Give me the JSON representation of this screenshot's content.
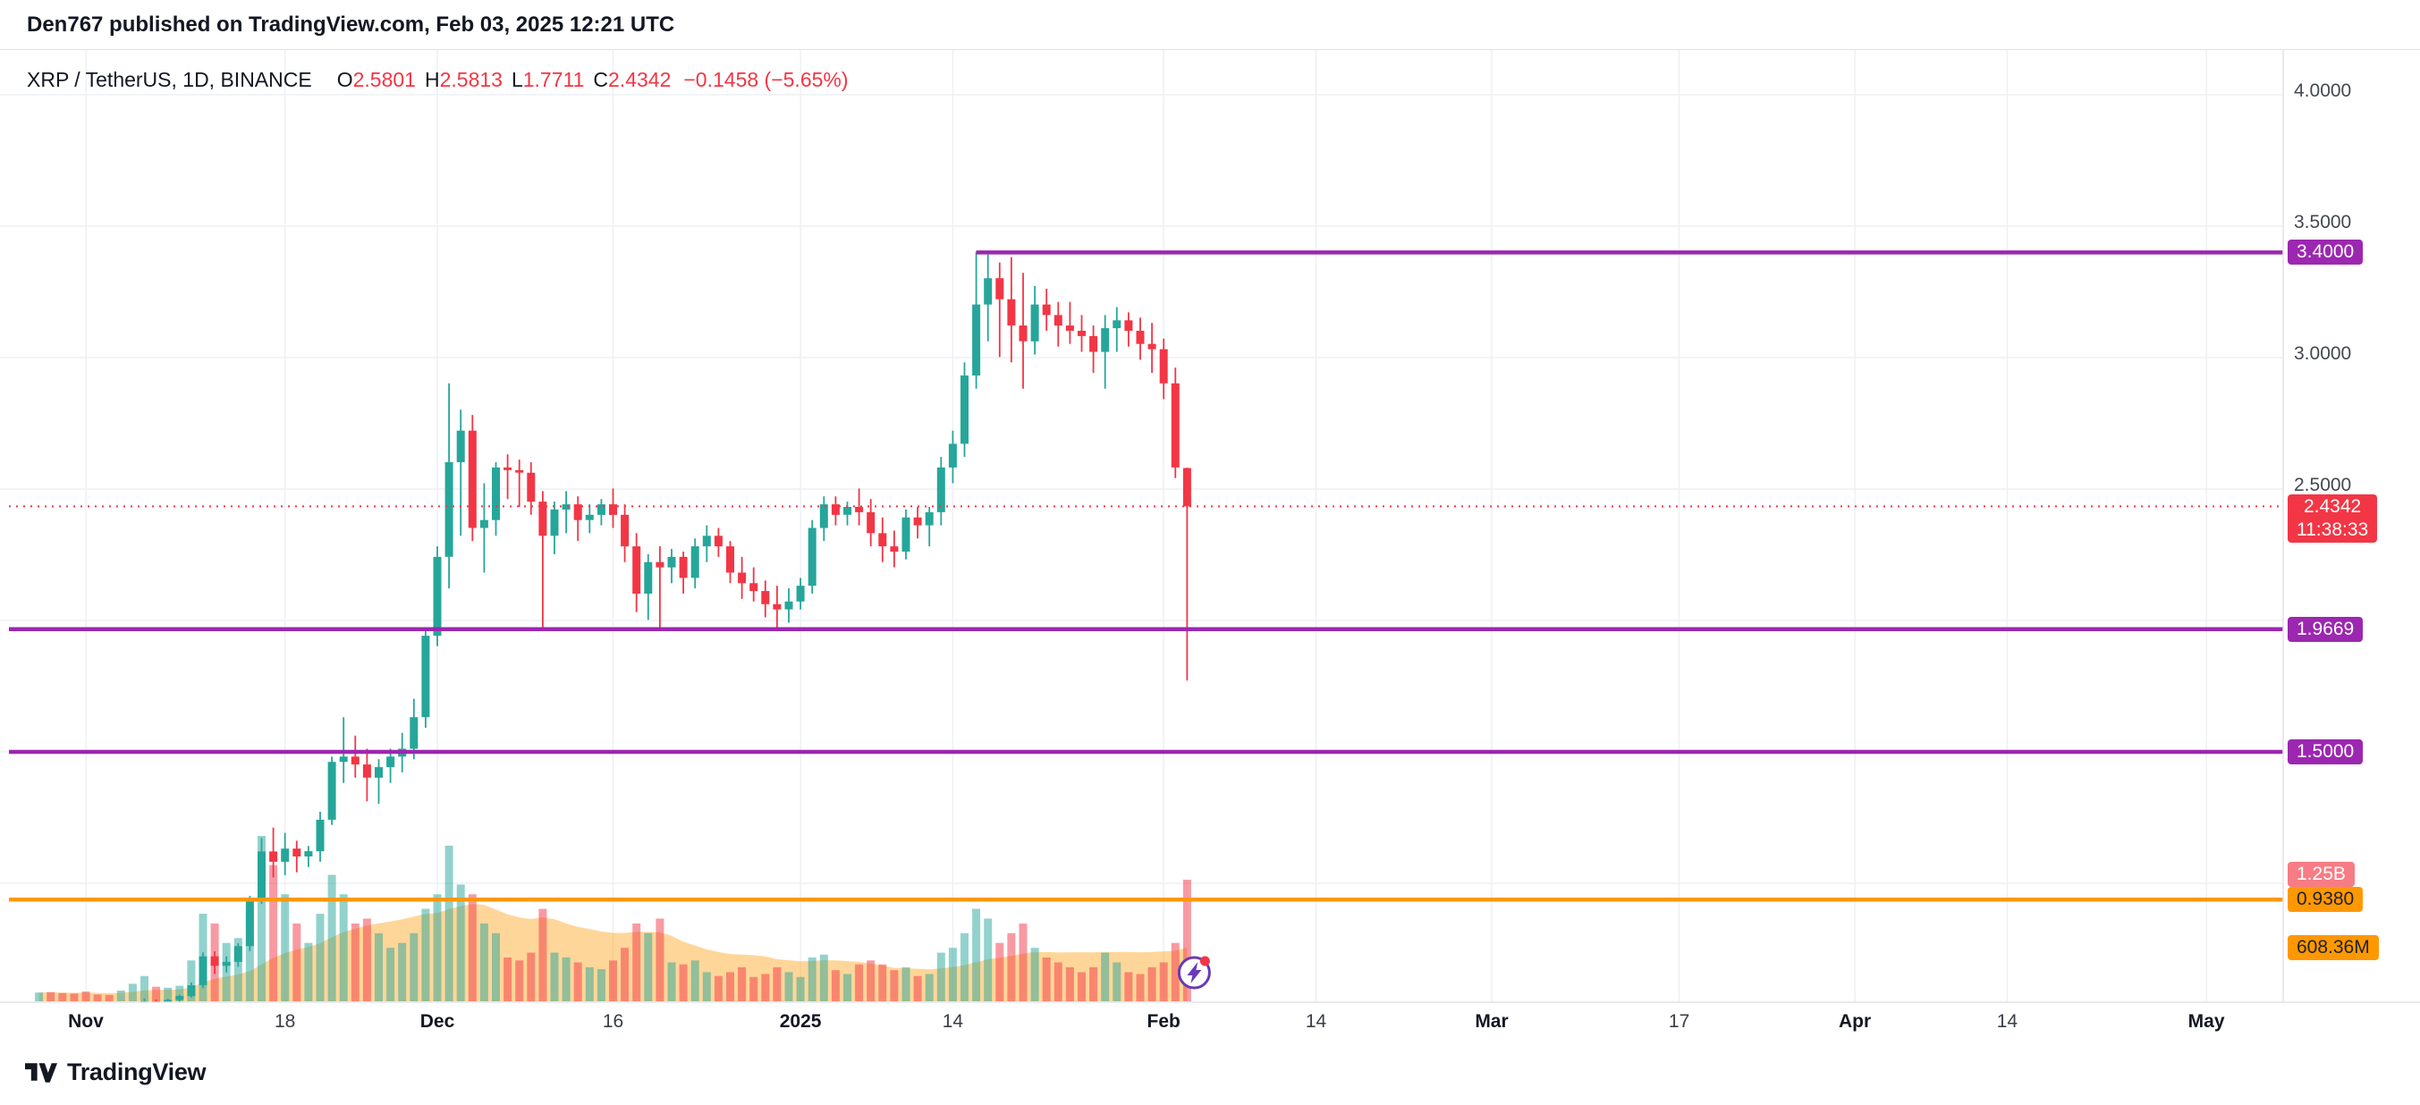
{
  "header": {
    "attribution": "Den767 published on TradingView.com, Feb 03, 2025 12:21 UTC"
  },
  "legend": {
    "symbol": "XRP / TetherUS, 1D, BINANCE",
    "open_label": "O",
    "open": "2.5801",
    "high_label": "H",
    "high": "2.5813",
    "low_label": "L",
    "low": "1.7711",
    "close_label": "C",
    "close": "2.4342",
    "change": "−0.1458 (−5.65%)"
  },
  "price_axis": {
    "plain_ticks": [
      {
        "label": "4.0000",
        "price": 4.0
      },
      {
        "label": "3.5000",
        "price": 3.5
      },
      {
        "label": "3.0000",
        "price": 3.0
      },
      {
        "label": "2.5000",
        "price": 2.5
      }
    ],
    "grid_prices": [
      4.0,
      3.5,
      3.0,
      2.5,
      2.0,
      1.5,
      1.0
    ],
    "current_price": {
      "label": "2.4342",
      "countdown": "11:38:33",
      "price": 2.4342,
      "bg": "#f23645",
      "fg": "#ffffff"
    },
    "levels": [
      {
        "label": "3.4000",
        "price": 3.4,
        "color": "#9c27b0",
        "fg": "#ffffff",
        "from_day": 80
      },
      {
        "label": "1.9669",
        "price": 1.9669,
        "color": "#9c27b0",
        "fg": "#ffffff"
      },
      {
        "label": "1.5000",
        "price": 1.5,
        "color": "#9c27b0",
        "fg": "#ffffff"
      },
      {
        "label": "0.9380",
        "price": 0.938,
        "color": "#ff9800",
        "fg": "#1e222d"
      }
    ],
    "volume_labels": [
      {
        "label": "1.25B",
        "bg": "#f77c85",
        "fg": "#ffffff",
        "anchor": "volume_bar"
      },
      {
        "label": "608.36M",
        "bg": "#ff9800",
        "fg": "#1e222d",
        "anchor": "volume_ma"
      }
    ]
  },
  "time_axis": {
    "ticks": [
      {
        "label": "Nov",
        "day": 4,
        "major": true
      },
      {
        "label": "18",
        "day": 21
      },
      {
        "label": "Dec",
        "day": 34,
        "major": true
      },
      {
        "label": "16",
        "day": 49
      },
      {
        "label": "2025",
        "day": 65,
        "major": true
      },
      {
        "label": "14",
        "day": 78
      },
      {
        "label": "Feb",
        "day": 96,
        "major": true
      },
      {
        "label": "14",
        "day": 109
      },
      {
        "label": "Mar",
        "day": 124,
        "major": true
      },
      {
        "label": "17",
        "day": 140
      },
      {
        "label": "Apr",
        "day": 155,
        "major": true
      },
      {
        "label": "14",
        "day": 168
      },
      {
        "label": "May",
        "day": 185,
        "major": true
      }
    ]
  },
  "marker": {
    "icon": "lightning-bolt-icon",
    "ring_color": "#673ab7",
    "dot_color": "#f23645"
  },
  "footer": {
    "brand": "TradingView",
    "logo_icon": "tradingview-logo"
  },
  "colors": {
    "up": "#26a69a",
    "down": "#f23645",
    "vol_up": "rgba(38,166,154,0.5)",
    "vol_down": "rgba(242,54,69,0.5)",
    "vol_ma_fill": "rgba(255,152,0,0.4)",
    "grid": "#eef0f4",
    "axis_border": "#e0e3eb",
    "current_line": "#f23645"
  },
  "chart_data": {
    "type": "candlestick",
    "title": "XRP / TetherUS, 1D, BINANCE",
    "pair": "XRP/USDT",
    "exchange": "BINANCE",
    "interval": "1D",
    "start_date": "2024-10-28",
    "end_date": "2025-02-03",
    "ylim": [
      0.55,
      4.02
    ],
    "current_ohlc": {
      "open": 2.5801,
      "high": 2.5813,
      "low": 1.7711,
      "close": 2.4342,
      "change": -0.1458,
      "change_pct": -5.65
    },
    "horizontal_levels": [
      3.4,
      1.9669,
      1.5,
      0.938
    ],
    "current_volume": "1.25B",
    "volume_ma": "608.36M",
    "volume_unit": "millions",
    "candles_format": [
      "open",
      "high",
      "low",
      "close",
      "volume_M"
    ],
    "candles": [
      [
        0.52,
        0.53,
        0.512,
        0.525,
        90
      ],
      [
        0.525,
        0.535,
        0.515,
        0.52,
        95
      ],
      [
        0.52,
        0.528,
        0.508,
        0.514,
        85
      ],
      [
        0.514,
        0.52,
        0.505,
        0.512,
        80
      ],
      [
        0.512,
        0.521,
        0.5,
        0.51,
        100
      ],
      [
        0.51,
        0.516,
        0.503,
        0.508,
        70
      ],
      [
        0.508,
        0.512,
        0.5,
        0.505,
        65
      ],
      [
        0.505,
        0.522,
        0.5,
        0.517,
        110
      ],
      [
        0.517,
        0.548,
        0.51,
        0.542,
        180
      ],
      [
        0.542,
        0.562,
        0.53,
        0.551,
        260
      ],
      [
        0.551,
        0.558,
        0.54,
        0.548,
        150
      ],
      [
        0.548,
        0.561,
        0.543,
        0.556,
        140
      ],
      [
        0.556,
        0.576,
        0.55,
        0.571,
        160
      ],
      [
        0.571,
        0.622,
        0.565,
        0.612,
        420
      ],
      [
        0.612,
        0.737,
        0.601,
        0.722,
        900
      ],
      [
        0.722,
        0.741,
        0.655,
        0.686,
        800
      ],
      [
        0.686,
        0.722,
        0.661,
        0.701,
        600
      ],
      [
        0.701,
        0.772,
        0.682,
        0.761,
        650
      ],
      [
        0.761,
        0.952,
        0.742,
        0.932,
        950
      ],
      [
        0.932,
        1.172,
        0.921,
        1.121,
        1700
      ],
      [
        1.121,
        1.212,
        1.022,
        1.082,
        1400
      ],
      [
        1.082,
        1.192,
        1.031,
        1.132,
        1100
      ],
      [
        1.132,
        1.162,
        1.042,
        1.102,
        800
      ],
      [
        1.102,
        1.142,
        1.062,
        1.122,
        600
      ],
      [
        1.122,
        1.272,
        1.082,
        1.242,
        900
      ],
      [
        1.242,
        1.482,
        1.222,
        1.462,
        1300
      ],
      [
        1.462,
        1.632,
        1.382,
        1.482,
        1100
      ],
      [
        1.482,
        1.562,
        1.402,
        1.452,
        800
      ],
      [
        1.452,
        1.512,
        1.312,
        1.402,
        850
      ],
      [
        1.402,
        1.472,
        1.302,
        1.442,
        700
      ],
      [
        1.442,
        1.512,
        1.382,
        1.482,
        550
      ],
      [
        1.482,
        1.572,
        1.422,
        1.512,
        600
      ],
      [
        1.512,
        1.702,
        1.472,
        1.632,
        700
      ],
      [
        1.632,
        1.972,
        1.592,
        1.942,
        950
      ],
      [
        1.942,
        2.282,
        1.902,
        2.242,
        1100
      ],
      [
        2.242,
        2.902,
        2.122,
        2.602,
        1600
      ],
      [
        2.602,
        2.802,
        2.322,
        2.722,
        1200
      ],
      [
        2.722,
        2.782,
        2.302,
        2.352,
        1100
      ],
      [
        2.352,
        2.522,
        2.182,
        2.382,
        800
      ],
      [
        2.382,
        2.602,
        2.322,
        2.582,
        700
      ],
      [
        2.582,
        2.632,
        2.462,
        2.572,
        450
      ],
      [
        2.572,
        2.612,
        2.432,
        2.562,
        420
      ],
      [
        2.562,
        2.602,
        2.402,
        2.452,
        500
      ],
      [
        2.452,
        2.492,
        1.962,
        2.322,
        950
      ],
      [
        2.322,
        2.452,
        2.252,
        2.422,
        500
      ],
      [
        2.422,
        2.492,
        2.332,
        2.442,
        450
      ],
      [
        2.442,
        2.472,
        2.302,
        2.382,
        400
      ],
      [
        2.382,
        2.442,
        2.332,
        2.402,
        350
      ],
      [
        2.402,
        2.462,
        2.362,
        2.442,
        330
      ],
      [
        2.442,
        2.502,
        2.352,
        2.402,
        420
      ],
      [
        2.402,
        2.442,
        2.222,
        2.282,
        550
      ],
      [
        2.282,
        2.332,
        2.032,
        2.102,
        800
      ],
      [
        2.102,
        2.252,
        2.002,
        2.222,
        700
      ],
      [
        2.222,
        2.282,
        1.972,
        2.202,
        850
      ],
      [
        2.202,
        2.272,
        2.142,
        2.242,
        400
      ],
      [
        2.242,
        2.262,
        2.102,
        2.162,
        380
      ],
      [
        2.162,
        2.312,
        2.122,
        2.282,
        420
      ],
      [
        2.282,
        2.362,
        2.222,
        2.322,
        300
      ],
      [
        2.322,
        2.352,
        2.242,
        2.282,
        260
      ],
      [
        2.282,
        2.302,
        2.142,
        2.182,
        300
      ],
      [
        2.182,
        2.242,
        2.082,
        2.142,
        350
      ],
      [
        2.142,
        2.202,
        2.072,
        2.112,
        250
      ],
      [
        2.112,
        2.152,
        2.012,
        2.062,
        280
      ],
      [
        2.062,
        2.132,
        1.972,
        2.042,
        350
      ],
      [
        2.042,
        2.122,
        1.992,
        2.072,
        300
      ],
      [
        2.072,
        2.162,
        2.042,
        2.132,
        250
      ],
      [
        2.132,
        2.382,
        2.102,
        2.352,
        450
      ],
      [
        2.352,
        2.472,
        2.302,
        2.442,
        480
      ],
      [
        2.442,
        2.472,
        2.362,
        2.402,
        320
      ],
      [
        2.402,
        2.452,
        2.362,
        2.432,
        280
      ],
      [
        2.432,
        2.502,
        2.362,
        2.412,
        380
      ],
      [
        2.412,
        2.462,
        2.282,
        2.332,
        420
      ],
      [
        2.332,
        2.392,
        2.222,
        2.282,
        380
      ],
      [
        2.282,
        2.342,
        2.202,
        2.262,
        320
      ],
      [
        2.262,
        2.422,
        2.232,
        2.392,
        350
      ],
      [
        2.392,
        2.432,
        2.312,
        2.362,
        260
      ],
      [
        2.362,
        2.432,
        2.282,
        2.412,
        280
      ],
      [
        2.412,
        2.622,
        2.362,
        2.582,
        500
      ],
      [
        2.582,
        2.722,
        2.522,
        2.672,
        550
      ],
      [
        2.672,
        2.982,
        2.622,
        2.932,
        700
      ],
      [
        2.932,
        3.402,
        2.882,
        3.202,
        950
      ],
      [
        3.202,
        3.392,
        3.062,
        3.302,
        850
      ],
      [
        3.302,
        3.362,
        3.002,
        3.222,
        600
      ],
      [
        3.222,
        3.382,
        2.982,
        3.122,
        700
      ],
      [
        3.122,
        3.322,
        2.882,
        3.062,
        800
      ],
      [
        3.062,
        3.272,
        3.012,
        3.202,
        550
      ],
      [
        3.202,
        3.262,
        3.102,
        3.162,
        450
      ],
      [
        3.162,
        3.212,
        3.042,
        3.122,
        400
      ],
      [
        3.122,
        3.212,
        3.052,
        3.102,
        350
      ],
      [
        3.102,
        3.162,
        3.022,
        3.082,
        300
      ],
      [
        3.082,
        3.122,
        2.942,
        3.022,
        350
      ],
      [
        3.022,
        3.162,
        2.882,
        3.112,
        500
      ],
      [
        3.112,
        3.192,
        3.022,
        3.142,
        400
      ],
      [
        3.142,
        3.172,
        3.042,
        3.102,
        300
      ],
      [
        3.102,
        3.152,
        2.992,
        3.052,
        280
      ],
      [
        3.052,
        3.132,
        2.942,
        3.032,
        350
      ],
      [
        3.032,
        3.072,
        2.842,
        2.902,
        400
      ],
      [
        2.902,
        2.962,
        2.542,
        2.582,
        600
      ],
      [
        2.5801,
        2.5813,
        1.7711,
        2.4342,
        1250
      ]
    ]
  }
}
